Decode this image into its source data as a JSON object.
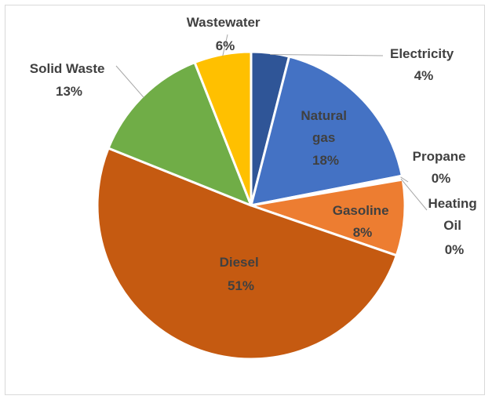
{
  "chart_data": {
    "type": "pie",
    "title": "",
    "slices": [
      {
        "category": "Electricity",
        "value": 4,
        "label_pct": "4%",
        "color": "#2f5597"
      },
      {
        "category": "Natural gas",
        "value": 18,
        "label_pct": "18%",
        "color": "#4472c4"
      },
      {
        "category": "Propane",
        "value": 0.2,
        "label_pct": "0%",
        "color": "#a5a5a5"
      },
      {
        "category": "Heating Oil",
        "value": 0.2,
        "label_pct": "0%",
        "color": "#5b9bd5"
      },
      {
        "category": "Gasoline",
        "value": 8,
        "label_pct": "8%",
        "color": "#ed7d31"
      },
      {
        "category": "Diesel",
        "value": 51,
        "label_pct": "51%",
        "color": "#c55a11"
      },
      {
        "category": "Solid Waste",
        "value": 13,
        "label_pct": "13%",
        "color": "#70ad47"
      },
      {
        "category": "Wastewater",
        "value": 6,
        "label_pct": "6%",
        "color": "#ffc000"
      }
    ],
    "label_text": {
      "electricity": [
        "Electricity",
        "4%"
      ],
      "natural_gas": [
        "Natural",
        "gas",
        "18%"
      ],
      "propane": [
        "Propane",
        "0%"
      ],
      "heating_oil": [
        "Heating",
        "Oil",
        "0%"
      ],
      "gasoline": [
        "Gasoline",
        "8%"
      ],
      "diesel": [
        "Diesel",
        "51%"
      ],
      "solid_waste": [
        "Solid Waste",
        "13%"
      ],
      "wastewater": [
        "Wastewater",
        "6%"
      ]
    },
    "legend": "none"
  }
}
